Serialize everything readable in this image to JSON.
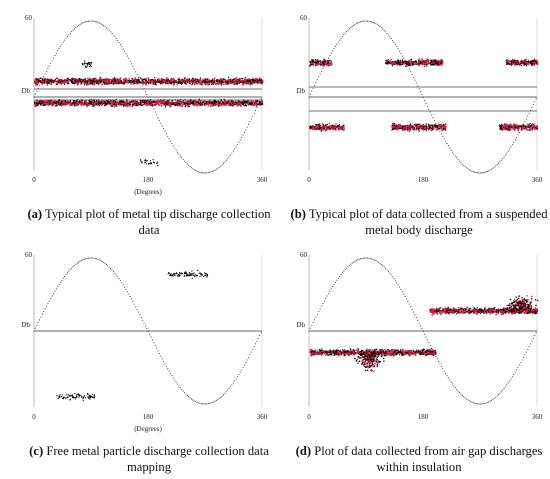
{
  "figure": {
    "panels": [
      {
        "id": "a",
        "caption_label": "(a)",
        "caption_text": "Typical plot of metal tip discharge collection data",
        "pattern": "tip"
      },
      {
        "id": "b",
        "caption_label": "(b)",
        "caption_text": "Typical plot of data collected from a suspended metal body discharge",
        "pattern": "suspended"
      },
      {
        "id": "c",
        "caption_label": "(c)",
        "caption_text": "Free metal particle discharge collection data mapping",
        "pattern": "particle"
      },
      {
        "id": "d",
        "caption_label": "(d)",
        "caption_text": "Plot of data collected from air gap discharges within insulation",
        "pattern": "airgap"
      }
    ]
  },
  "chart_data": [
    {
      "type": "scatter",
      "panel": "a",
      "xlabel": "(Degrees)",
      "ylabel": "Db",
      "xlim": [
        0,
        360
      ],
      "xticks": [
        "0",
        "180",
        "360"
      ],
      "ytick_top": "60",
      "series": [
        {
          "values": [
            {
              "x": 0,
              "y": 0
            },
            {
              "x": 90,
              "y": 57
            },
            {
              "x": 180,
              "y": 0
            },
            {
              "x": 270,
              "y": -57
            },
            {
              "x": 360,
              "y": 0
            }
          ]
        }
      ],
      "clusters": [
        {
          "x_range": [
            0,
            360
          ],
          "y": 12,
          "density": "high",
          "color": "red-black"
        },
        {
          "x_range": [
            0,
            360
          ],
          "y": -4,
          "density": "high",
          "color": "red-black"
        },
        {
          "x_range": [
            75,
            90
          ],
          "y": 25,
          "density": "low",
          "color": "black"
        },
        {
          "x_range": [
            165,
            195
          ],
          "y": -48,
          "density": "low",
          "color": "black"
        }
      ],
      "colors": {
        "points": "#000000",
        "highlight": "#e0204a"
      }
    },
    {
      "type": "scatter",
      "panel": "b",
      "xlabel": "",
      "ylabel": "Db",
      "xlim": [
        0,
        360
      ],
      "xticks": [
        "0",
        "180",
        "360"
      ],
      "ytick_top": "60",
      "series": [
        {
          "values": [
            {
              "x": 0,
              "y": 0
            },
            {
              "x": 90,
              "y": 57
            },
            {
              "x": 180,
              "y": 0
            },
            {
              "x": 270,
              "y": -57
            },
            {
              "x": 360,
              "y": 0
            }
          ]
        }
      ],
      "clusters": [
        {
          "x_range": [
            0,
            35
          ],
          "y": 26,
          "density": "high",
          "color": "red-black"
        },
        {
          "x_range": [
            120,
            210
          ],
          "y": 26,
          "density": "high",
          "color": "red-black"
        },
        {
          "x_range": [
            310,
            360
          ],
          "y": 26,
          "density": "high",
          "color": "red-black"
        },
        {
          "x_range": [
            0,
            55
          ],
          "y": -22,
          "density": "high",
          "color": "red-black"
        },
        {
          "x_range": [
            130,
            215
          ],
          "y": -22,
          "density": "high",
          "color": "red-black"
        },
        {
          "x_range": [
            300,
            360
          ],
          "y": -22,
          "density": "high",
          "color": "red-black"
        }
      ],
      "colors": {
        "points": "#000000",
        "highlight": "#e0204a"
      }
    },
    {
      "type": "scatter",
      "panel": "c",
      "xlabel": "(Degrees)",
      "ylabel": "Db",
      "xlim": [
        0,
        360
      ],
      "xticks": [
        "0",
        "180",
        "360"
      ],
      "ytick_top": "60",
      "series": [
        {
          "values": [
            {
              "x": 0,
              "y": 0
            },
            {
              "x": 90,
              "y": 57
            },
            {
              "x": 180,
              "y": 0
            },
            {
              "x": 270,
              "y": -57
            },
            {
              "x": 360,
              "y": 0
            }
          ]
        }
      ],
      "clusters": [
        {
          "x_range": [
            210,
            275
          ],
          "y": 44,
          "density": "medium",
          "color": "black"
        },
        {
          "x_range": [
            35,
            95
          ],
          "y": -50,
          "density": "medium",
          "color": "black"
        }
      ],
      "colors": {
        "points": "#000000",
        "highlight": "#e0204a"
      }
    },
    {
      "type": "scatter",
      "panel": "d",
      "xlabel": "",
      "ylabel": "Db",
      "xlim": [
        0,
        360
      ],
      "xticks": [
        "0",
        "180",
        "360"
      ],
      "ytick_top": "60",
      "series": [
        {
          "values": [
            {
              "x": 0,
              "y": 0
            },
            {
              "x": 90,
              "y": 57
            },
            {
              "x": 180,
              "y": 0
            },
            {
              "x": 270,
              "y": -57
            },
            {
              "x": 360,
              "y": 0
            }
          ]
        }
      ],
      "clusters": [
        {
          "x_range": [
            190,
            360
          ],
          "y": 16,
          "density": "high",
          "color": "red-black"
        },
        {
          "x_range": [
            0,
            200
          ],
          "y": -16,
          "density": "high",
          "color": "red-black"
        }
      ],
      "colors": {
        "points": "#000000",
        "highlight": "#e0204a"
      }
    }
  ]
}
